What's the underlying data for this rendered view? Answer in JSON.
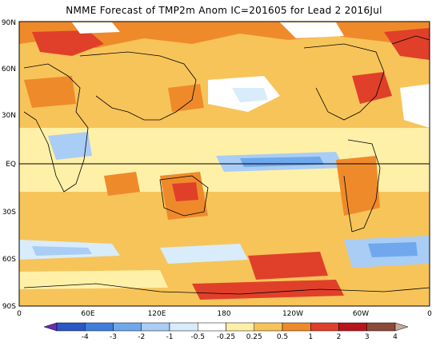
{
  "title": "NMME Forecast of TMP2m Anom IC=201605 for Lead 2 2016Jul",
  "lat_labels": [
    "90N",
    "60N",
    "30N",
    "EQ",
    "30S",
    "60S",
    "90S"
  ],
  "lon_labels": [
    "0",
    "60E",
    "120E",
    "180",
    "120W",
    "60W",
    "0"
  ],
  "legend": {
    "ticks": [
      "-4",
      "-3",
      "-2",
      "-1",
      "-0.5",
      "-0.25",
      "0.25",
      "0.5",
      "1",
      "2",
      "3",
      "4"
    ],
    "colors": [
      "#6a2cb8",
      "#2a56c6",
      "#3f7fdc",
      "#6fa8ec",
      "#a9cdf5",
      "#d8ecfb",
      "#ffffff",
      "#fff0a8",
      "#f7c45a",
      "#ef8a2a",
      "#e0402a",
      "#b8141e",
      "#8b4a3a",
      "#c9aa98"
    ]
  },
  "colors": {
    "ocean_neutral": "#ffffff",
    "light_pos": "#fff0a8",
    "mid_pos": "#f7c45a",
    "warm": "#ef8a2a",
    "hot": "#e0402a",
    "light_neg": "#d8ecfb",
    "mid_neg": "#a9cdf5",
    "strong_neg": "#6fa8ec"
  }
}
